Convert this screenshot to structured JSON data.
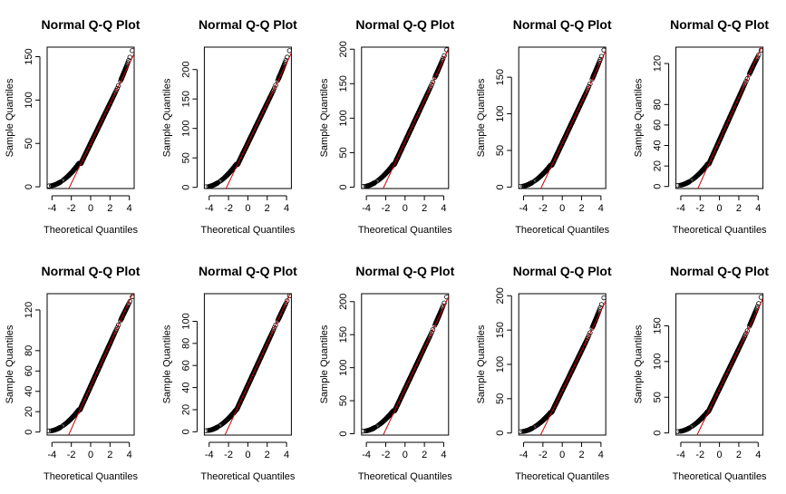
{
  "chart_data": [
    {
      "type": "scatter",
      "title": "Normal Q-Q Plot",
      "xlabel": "Theoretical Quantiles",
      "ylabel": "Sample Quantiles",
      "xlim": [
        -4.5,
        4.5
      ],
      "xticks": [
        "-4",
        "-2",
        "0",
        "2",
        "4"
      ],
      "ylim": [
        -2,
        161
      ],
      "yticks": [
        {
          "v": 0,
          "label": "0"
        },
        {
          "v": 50,
          "label": "50"
        },
        {
          "v": 100,
          "label": "100"
        },
        {
          "v": 150,
          "label": "150"
        }
      ],
      "qq_line": {
        "intercept": 50,
        "slope": 23
      },
      "points": {
        "lower_start": 1,
        "break_x": -1.2,
        "break_y": 27,
        "upper_end": 157
      },
      "marker": "open-circle",
      "point_color": "#000000",
      "line_color": "#cc0000"
    },
    {
      "type": "scatter",
      "title": "Normal Q-Q Plot",
      "xlabel": "Theoretical Quantiles",
      "ylabel": "Sample Quantiles",
      "xlim": [
        -4.5,
        4.5
      ],
      "xticks": [
        "-4",
        "-2",
        "0",
        "2",
        "4"
      ],
      "ylim": [
        -2,
        238
      ],
      "yticks": [
        {
          "v": 0,
          "label": "0"
        },
        {
          "v": 50,
          "label": "50"
        },
        {
          "v": 100,
          "label": "100"
        },
        {
          "v": 150,
          "label": "150"
        },
        {
          "v": 200,
          "label": "200"
        }
      ],
      "qq_line": {
        "intercept": 75,
        "slope": 34
      },
      "points": {
        "lower_start": 1,
        "break_x": -1.2,
        "break_y": 39,
        "upper_end": 232
      },
      "marker": "open-circle",
      "point_color": "#000000",
      "line_color": "#cc0000"
    },
    {
      "type": "scatter",
      "title": "Normal Q-Q Plot",
      "xlabel": "Theoretical Quantiles",
      "ylabel": "Sample Quantiles",
      "xlim": [
        -4.5,
        4.5
      ],
      "xticks": [
        "-4",
        "-2",
        "0",
        "2",
        "4"
      ],
      "ylim": [
        -2,
        203
      ],
      "yticks": [
        {
          "v": 0,
          "label": "0"
        },
        {
          "v": 50,
          "label": "50"
        },
        {
          "v": 100,
          "label": "100"
        },
        {
          "v": 150,
          "label": "150"
        },
        {
          "v": 200,
          "label": "200"
        }
      ],
      "qq_line": {
        "intercept": 66,
        "slope": 30
      },
      "points": {
        "lower_start": 1,
        "break_x": -1.2,
        "break_y": 33,
        "upper_end": 199
      },
      "marker": "open-circle",
      "point_color": "#000000",
      "line_color": "#cc0000"
    },
    {
      "type": "scatter",
      "title": "Normal Q-Q Plot",
      "xlabel": "Theoretical Quantiles",
      "ylabel": "Sample Quantiles",
      "xlim": [
        -4.5,
        4.5
      ],
      "xticks": [
        "-4",
        "-2",
        "0",
        "2",
        "4"
      ],
      "ylim": [
        -2,
        191
      ],
      "yticks": [
        {
          "v": 0,
          "label": "0"
        },
        {
          "v": 50,
          "label": "50"
        },
        {
          "v": 100,
          "label": "100"
        },
        {
          "v": 150,
          "label": "150"
        }
      ],
      "qq_line": {
        "intercept": 60,
        "slope": 28
      },
      "points": {
        "lower_start": 1,
        "break_x": -1.2,
        "break_y": 30,
        "upper_end": 187
      },
      "marker": "open-circle",
      "point_color": "#000000",
      "line_color": "#cc0000"
    },
    {
      "type": "scatter",
      "title": "Normal Q-Q Plot",
      "xlabel": "Theoretical Quantiles",
      "ylabel": "Sample Quantiles",
      "xlim": [
        -4.5,
        4.5
      ],
      "xticks": [
        "-4",
        "-2",
        "0",
        "2",
        "4"
      ],
      "ylim": [
        -2,
        136
      ],
      "yticks": [
        {
          "v": 0,
          "label": "0"
        },
        {
          "v": 20,
          "label": "20"
        },
        {
          "v": 40,
          "label": "40"
        },
        {
          "v": 60,
          "label": "60"
        },
        {
          "v": 80,
          "label": "80"
        },
        {
          "v": 120,
          "label": "120"
        }
      ],
      "qq_line": {
        "intercept": 45,
        "slope": 21
      },
      "points": {
        "lower_start": 1,
        "break_x": -1.2,
        "break_y": 22,
        "upper_end": 133
      },
      "marker": "open-circle",
      "point_color": "#000000",
      "line_color": "#cc0000"
    },
    {
      "type": "scatter",
      "title": "Normal Q-Q Plot",
      "xlabel": "Theoretical Quantiles",
      "ylabel": "Sample Quantiles",
      "xlim": [
        -4.5,
        4.5
      ],
      "xticks": [
        "-4",
        "-2",
        "0",
        "2",
        "4"
      ],
      "ylim": [
        -3,
        136
      ],
      "yticks": [
        {
          "v": 0,
          "label": "0"
        },
        {
          "v": 20,
          "label": "20"
        },
        {
          "v": 40,
          "label": "40"
        },
        {
          "v": 60,
          "label": "60"
        },
        {
          "v": 80,
          "label": "80"
        },
        {
          "v": 120,
          "label": "120"
        }
      ],
      "qq_line": {
        "intercept": 45,
        "slope": 21
      },
      "points": {
        "lower_start": 1,
        "break_x": -1.2,
        "break_y": 22,
        "upper_end": 133
      },
      "marker": "open-circle",
      "point_color": "#000000",
      "line_color": "#cc0000"
    },
    {
      "type": "scatter",
      "title": "Normal Q-Q Plot",
      "xlabel": "Theoretical Quantiles",
      "ylabel": "Sample Quantiles",
      "xlim": [
        -4.5,
        4.5
      ],
      "xticks": [
        "-4",
        "-2",
        "0",
        "2",
        "4"
      ],
      "ylim": [
        -3,
        125
      ],
      "yticks": [
        {
          "v": 0,
          "label": "0"
        },
        {
          "v": 20,
          "label": "20"
        },
        {
          "v": 40,
          "label": "40"
        },
        {
          "v": 60,
          "label": "60"
        },
        {
          "v": 80,
          "label": "80"
        },
        {
          "v": 100,
          "label": "100"
        }
      ],
      "qq_line": {
        "intercept": 42,
        "slope": 19
      },
      "points": {
        "lower_start": 1,
        "break_x": -1.2,
        "break_y": 20,
        "upper_end": 123
      },
      "marker": "open-circle",
      "point_color": "#000000",
      "line_color": "#cc0000"
    },
    {
      "type": "scatter",
      "title": "Normal Q-Q Plot",
      "xlabel": "Theoretical Quantiles",
      "ylabel": "Sample Quantiles",
      "xlim": [
        -4.5,
        4.5
      ],
      "xticks": [
        "-4",
        "-2",
        "0",
        "2",
        "4"
      ],
      "ylim": [
        -2,
        212
      ],
      "yticks": [
        {
          "v": 0,
          "label": "0"
        },
        {
          "v": 50,
          "label": "50"
        },
        {
          "v": 100,
          "label": "100"
        },
        {
          "v": 150,
          "label": "150"
        },
        {
          "v": 200,
          "label": "200"
        }
      ],
      "qq_line": {
        "intercept": 68,
        "slope": 31
      },
      "points": {
        "lower_start": 4,
        "break_x": -1.2,
        "break_y": 35,
        "upper_end": 207
      },
      "marker": "open-circle",
      "point_color": "#000000",
      "line_color": "#cc0000"
    },
    {
      "type": "scatter",
      "title": "Normal Q-Q Plot",
      "xlabel": "Theoretical Quantiles",
      "ylabel": "Sample Quantiles",
      "xlim": [
        -4.5,
        4.5
      ],
      "xticks": [
        "-4",
        "-2",
        "0",
        "2",
        "4"
      ],
      "ylim": [
        -3,
        203
      ],
      "yticks": [
        {
          "v": 0,
          "label": "0"
        },
        {
          "v": 50,
          "label": "50"
        },
        {
          "v": 100,
          "label": "100"
        },
        {
          "v": 150,
          "label": "150"
        },
        {
          "v": 200,
          "label": "200"
        }
      ],
      "qq_line": {
        "intercept": 62,
        "slope": 29
      },
      "points": {
        "lower_start": 2,
        "break_x": -1.2,
        "break_y": 30,
        "upper_end": 197
      },
      "marker": "open-circle",
      "point_color": "#000000",
      "line_color": "#cc0000"
    },
    {
      "type": "scatter",
      "title": "Normal Q-Q Plot",
      "xlabel": "Theoretical Quantiles",
      "ylabel": "Sample Quantiles",
      "xlim": [
        -4.5,
        4.5
      ],
      "xticks": [
        "-4",
        "-2",
        "0",
        "2",
        "4"
      ],
      "ylim": [
        -3,
        195
      ],
      "yticks": [
        {
          "v": 0,
          "label": "0"
        },
        {
          "v": 50,
          "label": "50"
        },
        {
          "v": 100,
          "label": "100"
        },
        {
          "v": 150,
          "label": "150"
        }
      ],
      "qq_line": {
        "intercept": 62,
        "slope": 28
      },
      "points": {
        "lower_start": 2,
        "break_x": -1.2,
        "break_y": 30,
        "upper_end": 190
      },
      "marker": "open-circle",
      "point_color": "#000000",
      "line_color": "#cc0000"
    }
  ]
}
